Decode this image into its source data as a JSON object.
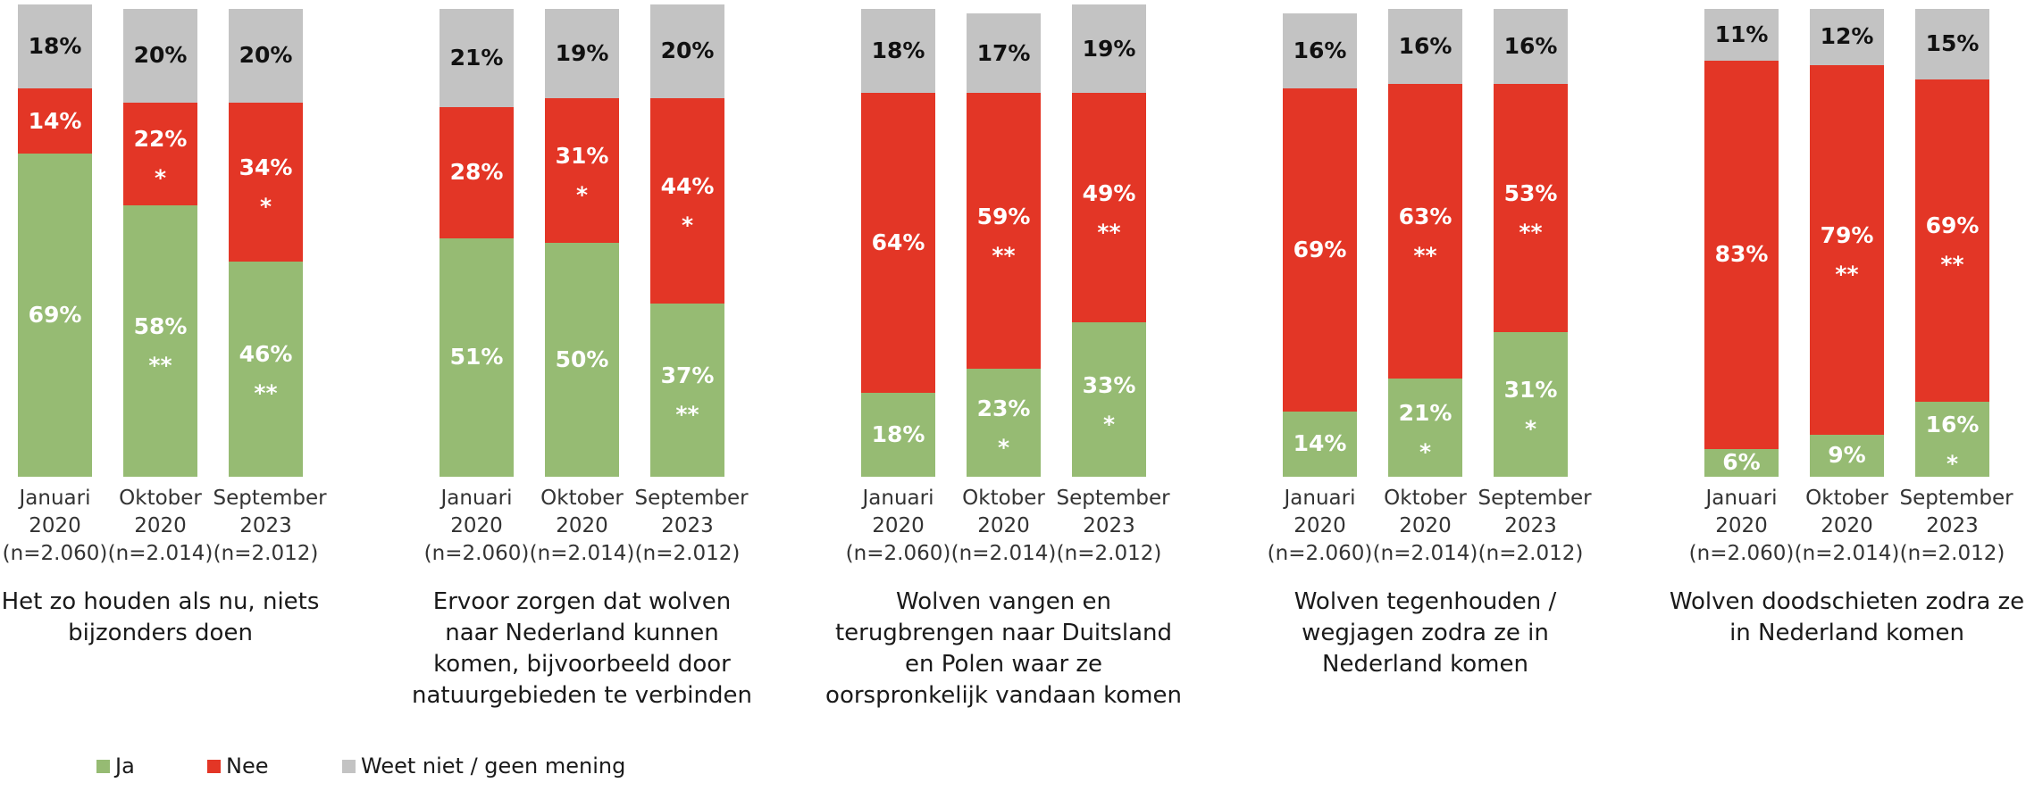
{
  "legend": {
    "entries": [
      {
        "name": "Ja",
        "color": "#96bb73"
      },
      {
        "name": "Nee",
        "color": "#e33626"
      },
      {
        "name": "Weet niet / geen mening",
        "color": "#c3c3c3"
      }
    ]
  },
  "chart_data": [
    {
      "type": "bar",
      "stacked": true,
      "title": "Het zo houden als nu, niets bijzonders doen",
      "categories": [
        "Januari 2020",
        "Oktober 2020",
        "September 2023"
      ],
      "n_labels": [
        "(n=2.060)",
        "(n=2.014)",
        "(n=2.012)"
      ],
      "ylim": [
        0,
        100
      ],
      "series": [
        {
          "values": [
            69,
            58,
            46
          ],
          "value_labels": [
            "69%",
            "58%",
            "46%"
          ],
          "markers": [
            null,
            "**",
            "**"
          ]
        },
        {
          "values": [
            14,
            22,
            34
          ],
          "value_labels": [
            "14%",
            "22%",
            "34%"
          ],
          "markers": [
            null,
            "*",
            "*"
          ]
        },
        {
          "values": [
            18,
            20,
            20
          ],
          "value_labels": [
            "18%",
            "20%",
            "20%"
          ],
          "markers": [
            null,
            null,
            null
          ]
        }
      ]
    },
    {
      "type": "bar",
      "stacked": true,
      "title": "Ervoor zorgen dat wolven naar Nederland kunnen komen, bijvoorbeeld door natuurgebieden te verbinden",
      "categories": [
        "Januari 2020",
        "Oktober 2020",
        "September 2023"
      ],
      "n_labels": [
        "(n=2.060)",
        "(n=2.014)",
        "(n=2.012)"
      ],
      "ylim": [
        0,
        100
      ],
      "series": [
        {
          "values": [
            51,
            50,
            37
          ],
          "value_labels": [
            "51%",
            "50%",
            "37%"
          ],
          "markers": [
            null,
            null,
            "**"
          ]
        },
        {
          "values": [
            28,
            31,
            44
          ],
          "value_labels": [
            "28%",
            "31%",
            "44%"
          ],
          "markers": [
            null,
            "*",
            "*"
          ]
        },
        {
          "values": [
            21,
            19,
            20
          ],
          "value_labels": [
            "21%",
            "19%",
            "20%"
          ],
          "markers": [
            null,
            null,
            null
          ]
        }
      ]
    },
    {
      "type": "bar",
      "stacked": true,
      "title": "Wolven vangen en terugbrengen naar Duitsland en Polen waar ze oorspronkelijk vandaan komen",
      "categories": [
        "Januari 2020",
        "Oktober 2020",
        "September 2023"
      ],
      "n_labels": [
        "(n=2.060)",
        "(n=2.014)",
        "(n=2.012)"
      ],
      "ylim": [
        0,
        100
      ],
      "series": [
        {
          "values": [
            18,
            23,
            33
          ],
          "value_labels": [
            "18%",
            "23%",
            "33%"
          ],
          "markers": [
            null,
            "*",
            "*"
          ]
        },
        {
          "values": [
            64,
            59,
            49
          ],
          "value_labels": [
            "64%",
            "59%",
            "49%"
          ],
          "markers": [
            null,
            "**",
            "**"
          ]
        },
        {
          "values": [
            18,
            17,
            19
          ],
          "value_labels": [
            "18%",
            "17%",
            "19%"
          ],
          "markers": [
            null,
            null,
            null
          ]
        }
      ]
    },
    {
      "type": "bar",
      "stacked": true,
      "title": "Wolven tegenhouden / wegjagen zodra ze in Nederland komen",
      "categories": [
        "Januari 2020",
        "Oktober 2020",
        "September 2023"
      ],
      "n_labels": [
        "(n=2.060)",
        "(n=2.014)",
        "(n=2.012)"
      ],
      "ylim": [
        0,
        100
      ],
      "series": [
        {
          "values": [
            14,
            21,
            31
          ],
          "value_labels": [
            "14%",
            "21%",
            "31%"
          ],
          "markers": [
            null,
            "*",
            "*"
          ]
        },
        {
          "values": [
            69,
            63,
            53
          ],
          "value_labels": [
            "69%",
            "63%",
            "53%"
          ],
          "markers": [
            null,
            "**",
            "**"
          ]
        },
        {
          "values": [
            16,
            16,
            16
          ],
          "value_labels": [
            "16%",
            "16%",
            "16%"
          ],
          "markers": [
            null,
            null,
            null
          ]
        }
      ]
    },
    {
      "type": "bar",
      "stacked": true,
      "title": "Wolven doodschieten zodra ze in Nederland komen",
      "categories": [
        "Januari 2020",
        "Oktober 2020",
        "September 2023"
      ],
      "n_labels": [
        "(n=2.060)",
        "(n=2.014)",
        "(n=2.012)"
      ],
      "ylim": [
        0,
        100
      ],
      "series": [
        {
          "values": [
            6,
            9,
            16
          ],
          "value_labels": [
            "6%",
            "9%",
            "16%"
          ],
          "markers": [
            null,
            null,
            "*"
          ]
        },
        {
          "values": [
            83,
            79,
            69
          ],
          "value_labels": [
            "83%",
            "79%",
            "69%"
          ],
          "markers": [
            null,
            "**",
            "**"
          ]
        },
        {
          "values": [
            11,
            12,
            15
          ],
          "value_labels": [
            "11%",
            "12%",
            "15%"
          ],
          "markers": [
            null,
            null,
            null
          ]
        }
      ]
    }
  ]
}
